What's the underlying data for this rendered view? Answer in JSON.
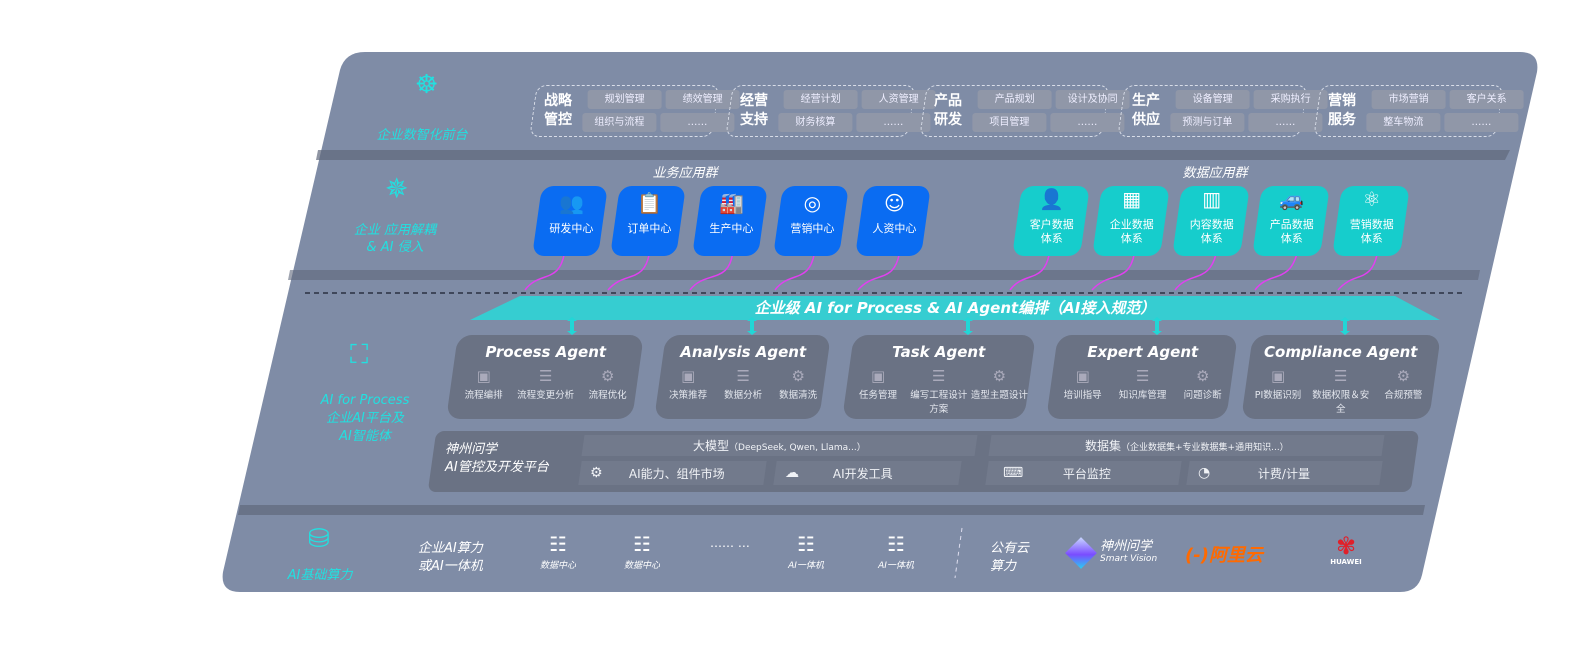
{
  "colors": {
    "panel": "#7f8ca6",
    "accent_cyan": "#22e0e0",
    "business_blue": "#0a6cf2",
    "data_teal": "#16cdcc",
    "arrow_magenta": "#e040f0",
    "aliyun_orange": "#ff6a00",
    "huawei_red": "#e0202a"
  },
  "layers": {
    "front": {
      "label": "企业数智化前台",
      "icon": "brain-icon",
      "groups": [
        {
          "title": [
            "战略",
            "管控"
          ],
          "items": [
            "规划管理",
            "绩效管理",
            "组织与流程",
            "……"
          ]
        },
        {
          "title": [
            "经营",
            "支持"
          ],
          "items": [
            "经营计划",
            "人资管理",
            "财务核算",
            "……"
          ]
        },
        {
          "title": [
            "产品",
            "研发"
          ],
          "items": [
            "产品规划",
            "设计及协同",
            "项目管理",
            "……"
          ]
        },
        {
          "title": [
            "生产",
            "供应"
          ],
          "items": [
            "设备管理",
            "采购执行",
            "预测与订单",
            "……"
          ]
        },
        {
          "title": [
            "营销",
            "服务"
          ],
          "items": [
            "市场营销",
            "客户关系",
            "整车物流",
            "……"
          ]
        }
      ]
    },
    "apps": {
      "label": [
        "企业 应用解耦",
        "& AI 侵入"
      ],
      "icon": "molecule-icon",
      "business_title": "业务应用群",
      "business": [
        {
          "label": "研发中心",
          "icon": "users-icon"
        },
        {
          "label": "订单中心",
          "icon": "clipboard-icon"
        },
        {
          "label": "生产中心",
          "icon": "factory-icon"
        },
        {
          "label": "营销中心",
          "icon": "target-icon"
        },
        {
          "label": "人资中心",
          "icon": "person-icon"
        }
      ],
      "data_title": "数据应用群",
      "data": [
        {
          "label": [
            "客户数据",
            "体系"
          ],
          "icon": "user-icon"
        },
        {
          "label": [
            "企业数据",
            "体系"
          ],
          "icon": "building-icon"
        },
        {
          "label": [
            "内容数据",
            "体系"
          ],
          "icon": "books-icon"
        },
        {
          "label": [
            "产品数据",
            "体系"
          ],
          "icon": "car-icon"
        },
        {
          "label": [
            "营销数据",
            "体系"
          ],
          "icon": "atom-icon"
        }
      ]
    },
    "ai": {
      "label": [
        "AI for Process",
        "企业AI平台及",
        "AI智能体"
      ],
      "icon": "face-scan-icon",
      "banner": "企业级 AI for Process & AI Agent编排（AI接入规范）",
      "agents": [
        {
          "name": "Process Agent",
          "items": [
            "流程编排",
            "流程变更分析",
            "流程优化"
          ]
        },
        {
          "name": "Analysis Agent",
          "items": [
            "决策推荐",
            "数据分析",
            "数据清洗"
          ]
        },
        {
          "name": "Task Agent",
          "items": [
            "任务管理",
            "编写工程设计方案",
            "造型主题设计"
          ]
        },
        {
          "name": "Expert Agent",
          "items": [
            "培训指导",
            "知识库管理",
            "问题诊断"
          ]
        },
        {
          "name": "Compliance Agent",
          "items": [
            "PI数据识别",
            "数据权限＆安全",
            "合规预警"
          ]
        }
      ],
      "platform": {
        "title": [
          "神州问学",
          "AI管控及开发平台"
        ],
        "llm": "大模型",
        "llm_note": "（DeepSeek, Qwen, Llama...）",
        "dataset": "数据集",
        "dataset_note": "（企业数据集+专业数据集+通用知识...）",
        "tools": [
          "AI能力、组件市场",
          "AI开发工具",
          "平台监控",
          "计费/计量"
        ]
      }
    },
    "infra": {
      "label": "AI基础算力",
      "icon": "database-icon",
      "enterprise": [
        "企业AI算力",
        "或AI一体机"
      ],
      "servers": [
        "数据中心",
        "数据中心",
        "AI一体机",
        "AI一体机"
      ],
      "ellipsis": "…… …",
      "public": [
        "公有云",
        "算力"
      ],
      "vendors": {
        "smartvision": [
          "神州问学",
          "Smart Vision"
        ],
        "aliyun": "阿里云",
        "aliyun_mark": "(-)",
        "huawei": "HUAWEI"
      }
    }
  }
}
